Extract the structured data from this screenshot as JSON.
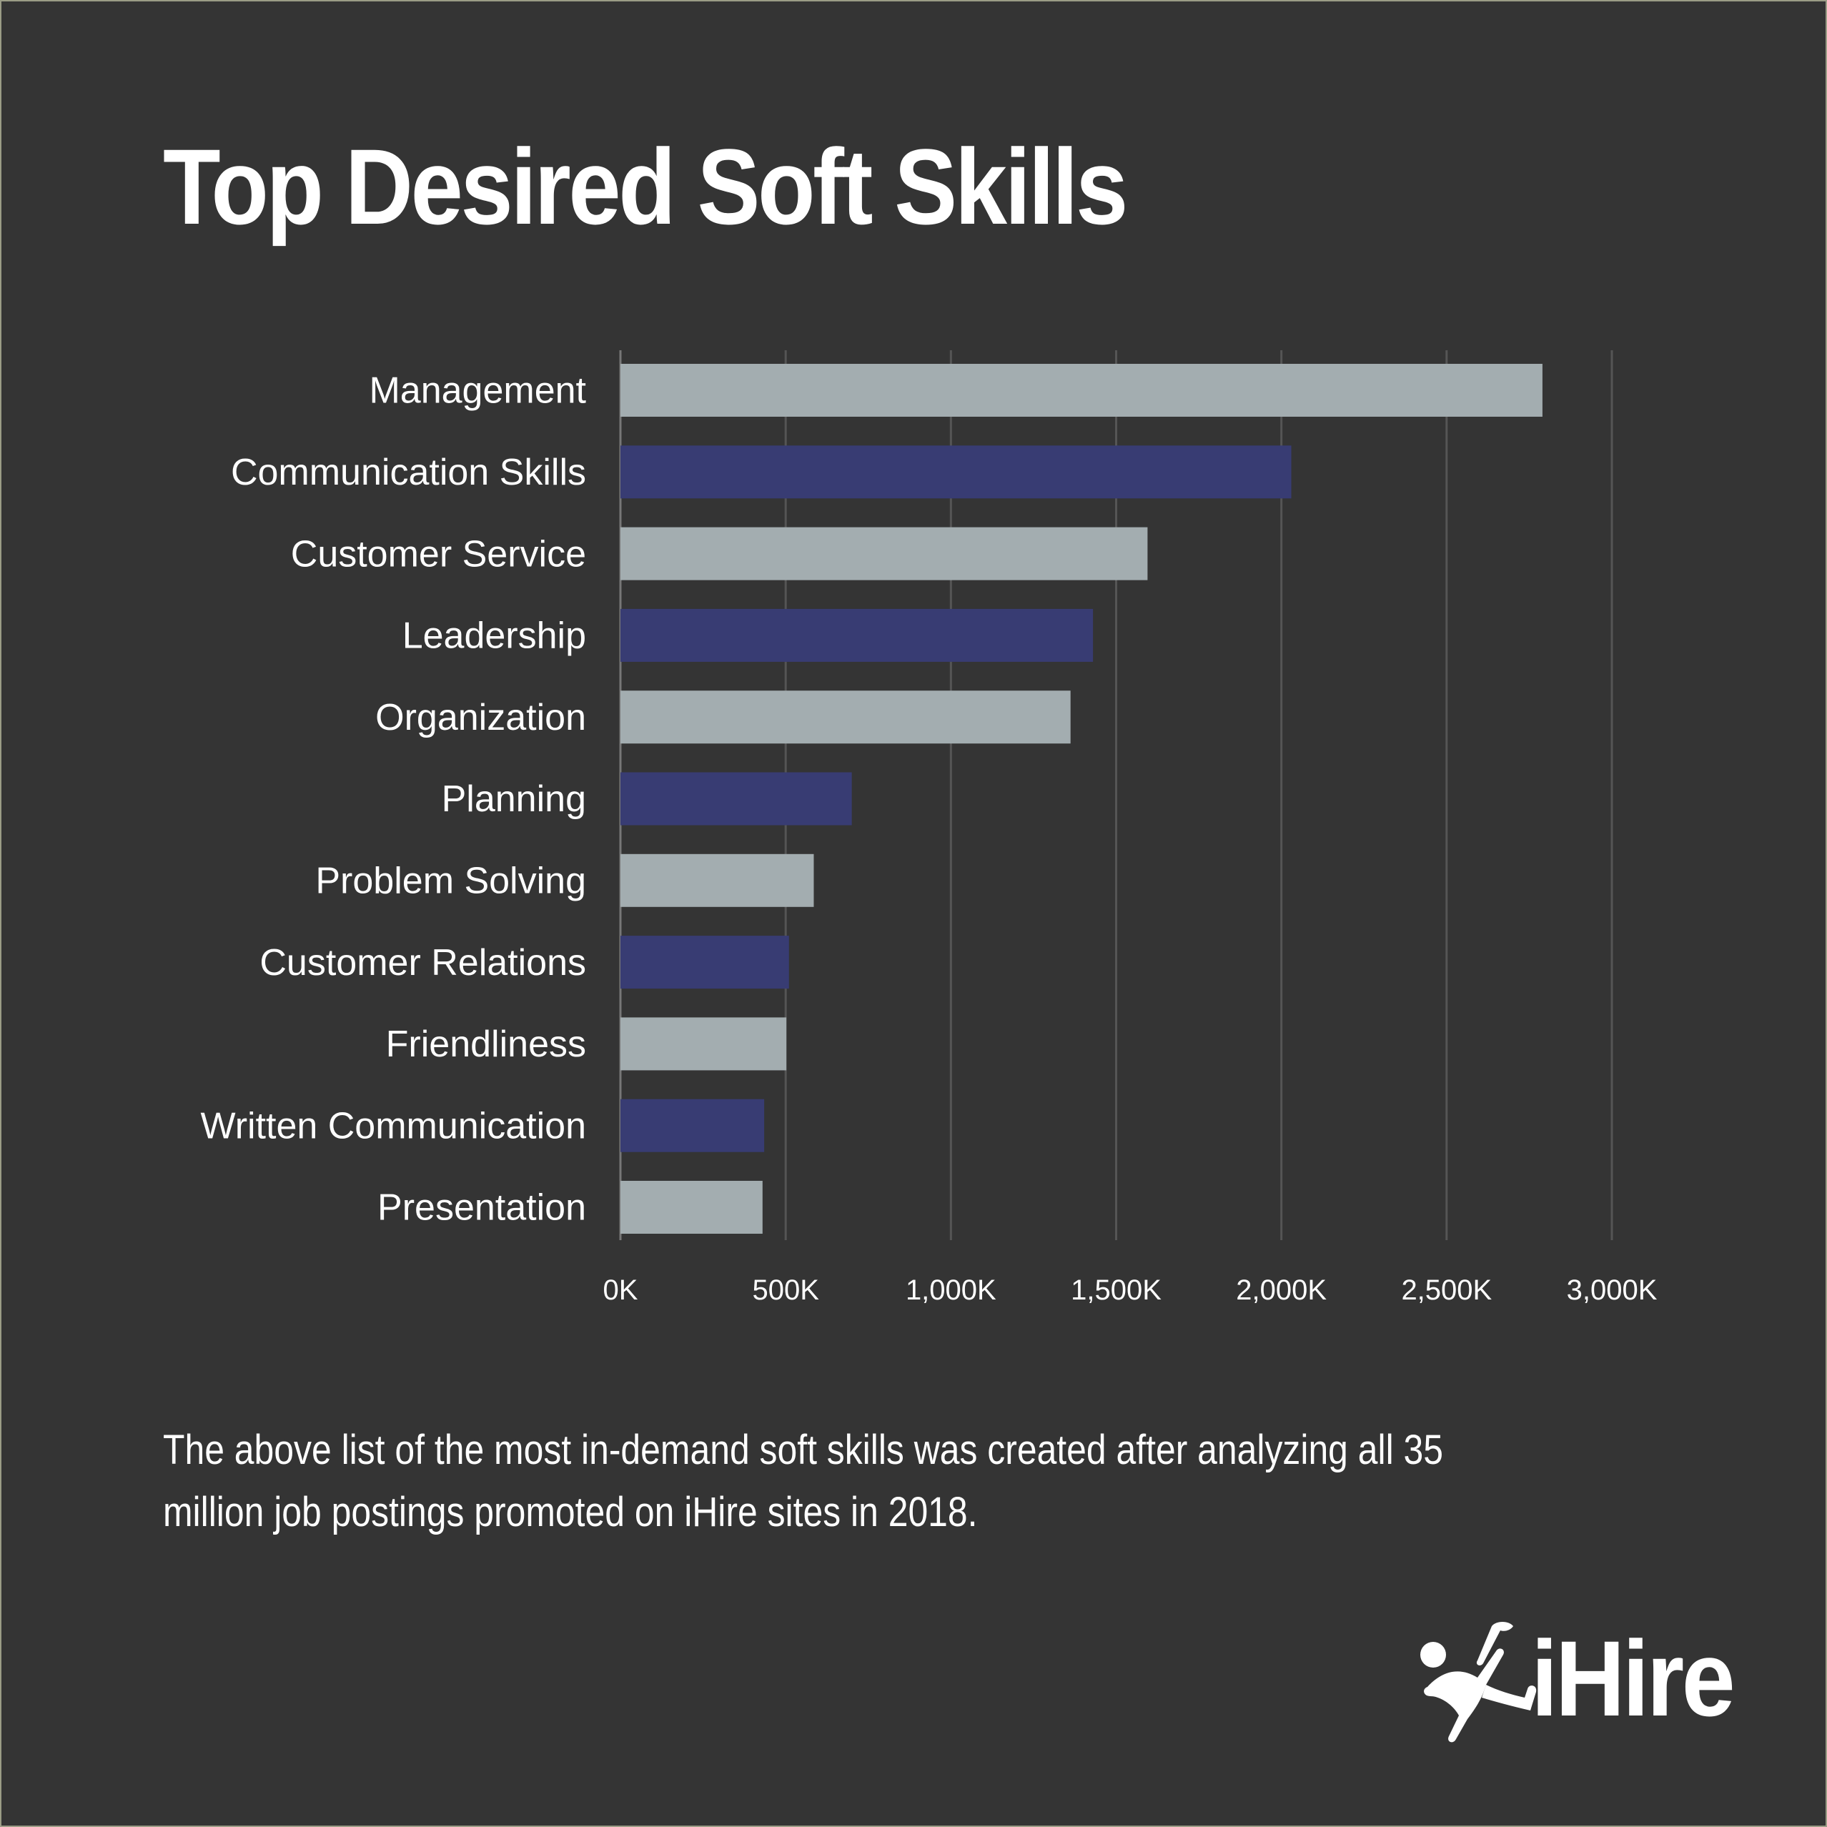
{
  "header": {
    "title": "Top Desired Soft Skills"
  },
  "chart_data": {
    "type": "bar",
    "orientation": "horizontal",
    "title": "Top Desired Soft Skills",
    "xlabel": "",
    "ylabel": "",
    "categories": [
      "Management",
      "Communication Skills",
      "Customer Service",
      "Leadership",
      "Organization",
      "Planning",
      "Problem Solving",
      "Customer Relations",
      "Friendliness",
      "Written Communication",
      "Presentation"
    ],
    "values": [
      2790,
      2030,
      1595,
      1430,
      1362,
      700,
      585,
      510,
      502,
      435,
      430
    ],
    "xlim": [
      0,
      3000
    ],
    "x_ticks": [
      0,
      500,
      1000,
      1500,
      2000,
      2500,
      3000
    ],
    "x_tick_labels": [
      "0K",
      "500K",
      "1,000K",
      "1,500K",
      "2,000K",
      "2,500K",
      "3,000K"
    ],
    "grid": "vertical",
    "legend": "none",
    "bar_colors": [
      "#a3adb0",
      "#383c73"
    ]
  },
  "caption": {
    "text": "The above list of the most in-demand soft skills was created after analyzing all 35 million job postings promoted on iHire sites in 2018."
  },
  "logo": {
    "text": "iHire",
    "icon": "ihire-figure-icon"
  },
  "colors": {
    "background": "#343434",
    "text": "#ffffff",
    "grid": "#555555",
    "bar_light": "#a3adb0",
    "bar_dark": "#383c73"
  }
}
